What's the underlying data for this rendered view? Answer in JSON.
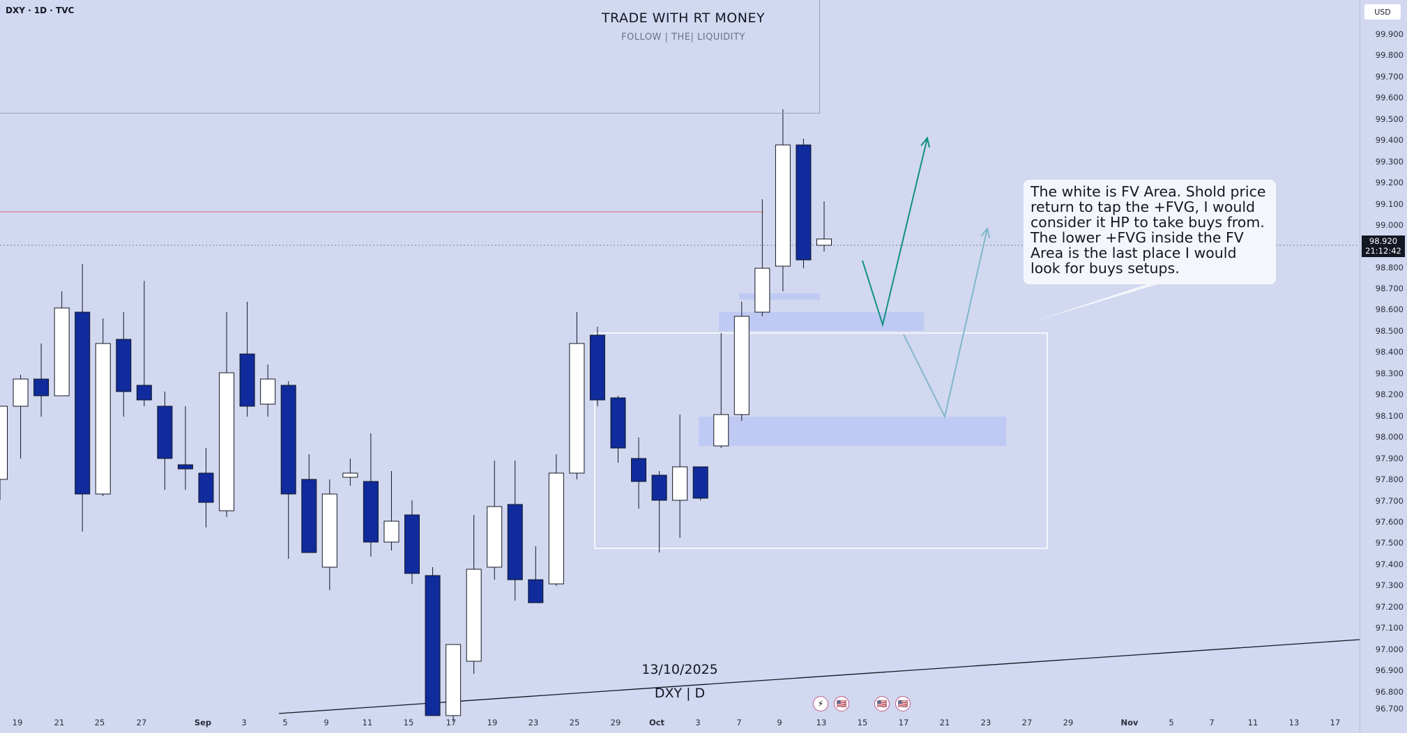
{
  "header": {
    "symbol": "DXY · 1D · TVC"
  },
  "banner": {
    "title": "TRADE WITH RT MONEY",
    "subtitle": "FOLLOW   |   THE|   LIQUIDITY"
  },
  "note": {
    "text": "The white is FV Area.  Shold price return to tap the +FVG, I would consider it HP to take buys from. The lower +FVG inside the FV Area is the last place I would look for buys setups."
  },
  "footer": {
    "date": "13/10/2025",
    "symbol": "DXY | D"
  },
  "price_axis": {
    "currency": "USD",
    "last_price": "98.920",
    "countdown": "21:12:42",
    "labels": [
      "99.900",
      "99.800",
      "99.700",
      "99.600",
      "99.500",
      "99.400",
      "99.300",
      "99.200",
      "99.100",
      "99.000",
      "98.800",
      "98.700",
      "98.600",
      "98.500",
      "98.400",
      "98.300",
      "98.200",
      "98.100",
      "98.000",
      "97.900",
      "97.800",
      "97.700",
      "97.600",
      "97.500",
      "97.400",
      "97.300",
      "97.200",
      "97.100",
      "97.000",
      "96.900",
      "96.800",
      "96.700"
    ]
  },
  "time_axis": {
    "labels": [
      "19",
      "21",
      "25",
      "27",
      "Sep",
      "3",
      "5",
      "9",
      "11",
      "15",
      "17",
      "19",
      "23",
      "25",
      "29",
      "Oct",
      "3",
      "7",
      "9",
      "13",
      "15",
      "17",
      "21",
      "23",
      "27",
      "29",
      "Nov",
      "5",
      "7",
      "11",
      "13",
      "17"
    ]
  },
  "events": [
    {
      "icon": "lightning-icon"
    },
    {
      "icon": "us-flag-icon"
    },
    {
      "icon": "us-flag-icon"
    },
    {
      "icon": "us-flag-icon"
    }
  ],
  "colors": {
    "bull_body": "#ffffff",
    "bear_body": "#0f2b9c",
    "wick": "#131722",
    "fvg": "#bcc8f4",
    "arrow_primary": "#119180",
    "arrow_secondary": "#7fb7c9",
    "red_line": "#e07070",
    "background": "#d1d8f0"
  },
  "chart_data": {
    "type": "candlestick",
    "symbol": "DXY",
    "timeframe": "1D",
    "ylim": [
      96.7,
      100.0
    ],
    "candles": [
      {
        "x": "14",
        "o": 97.8,
        "h": 98.15,
        "l": 97.7,
        "c": 98.15
      },
      {
        "x": "15",
        "o": 98.15,
        "h": 98.3,
        "l": 97.9,
        "c": 98.28
      },
      {
        "x": "18",
        "o": 98.28,
        "h": 98.45,
        "l": 98.1,
        "c": 98.2
      },
      {
        "x": "19",
        "o": 98.2,
        "h": 98.7,
        "l": 98.2,
        "c": 98.62
      },
      {
        "x": "20",
        "o": 98.6,
        "h": 98.83,
        "l": 97.55,
        "c": 97.73
      },
      {
        "x": "21",
        "o": 97.73,
        "h": 98.57,
        "l": 97.72,
        "c": 98.45
      },
      {
        "x": "22",
        "o": 98.47,
        "h": 98.6,
        "l": 98.1,
        "c": 98.22
      },
      {
        "x": "25",
        "o": 98.25,
        "h": 98.75,
        "l": 98.15,
        "c": 98.18
      },
      {
        "x": "26",
        "o": 98.15,
        "h": 98.22,
        "l": 97.75,
        "c": 97.9
      },
      {
        "x": "27",
        "o": 97.87,
        "h": 98.15,
        "l": 97.75,
        "c": 97.85
      },
      {
        "x": "28",
        "o": 97.83,
        "h": 97.95,
        "l": 97.57,
        "c": 97.69
      },
      {
        "x": "29",
        "o": 97.65,
        "h": 98.6,
        "l": 97.62,
        "c": 98.31
      },
      {
        "x": "Sep 1",
        "o": 98.4,
        "h": 98.65,
        "l": 98.1,
        "c": 98.15
      },
      {
        "x": "2",
        "o": 98.16,
        "h": 98.35,
        "l": 98.1,
        "c": 98.28
      },
      {
        "x": "3",
        "o": 98.25,
        "h": 98.27,
        "l": 97.42,
        "c": 97.73
      },
      {
        "x": "4",
        "o": 97.8,
        "h": 97.92,
        "l": 97.45,
        "c": 97.45
      },
      {
        "x": "5",
        "o": 97.38,
        "h": 97.8,
        "l": 97.27,
        "c": 97.73
      },
      {
        "x": "8",
        "o": 97.81,
        "h": 97.9,
        "l": 97.77,
        "c": 97.83
      },
      {
        "x": "9",
        "o": 97.79,
        "h": 98.02,
        "l": 97.43,
        "c": 97.5
      },
      {
        "x": "10",
        "o": 97.5,
        "h": 97.84,
        "l": 97.46,
        "c": 97.6
      },
      {
        "x": "11",
        "o": 97.63,
        "h": 97.7,
        "l": 97.3,
        "c": 97.35
      },
      {
        "x": "12",
        "o": 97.34,
        "h": 97.38,
        "l": 96.67,
        "c": 96.67
      },
      {
        "x": "15",
        "o": 96.67,
        "h": 97.01,
        "l": 96.64,
        "c": 97.01
      },
      {
        "x": "16",
        "o": 96.93,
        "h": 97.63,
        "l": 96.87,
        "c": 97.37
      },
      {
        "x": "17",
        "o": 97.38,
        "h": 97.89,
        "l": 97.32,
        "c": 97.67
      },
      {
        "x": "18",
        "o": 97.68,
        "h": 97.89,
        "l": 97.22,
        "c": 97.32
      },
      {
        "x": "19",
        "o": 97.32,
        "h": 97.48,
        "l": 97.21,
        "c": 97.21
      },
      {
        "x": "22",
        "o": 97.3,
        "h": 97.92,
        "l": 97.29,
        "c": 97.83
      },
      {
        "x": "23",
        "o": 97.83,
        "h": 98.6,
        "l": 97.8,
        "c": 98.45
      },
      {
        "x": "24",
        "o": 98.49,
        "h": 98.53,
        "l": 98.15,
        "c": 98.18
      },
      {
        "x": "25",
        "o": 98.19,
        "h": 98.2,
        "l": 97.88,
        "c": 97.95
      },
      {
        "x": "26",
        "o": 97.9,
        "h": 98.0,
        "l": 97.66,
        "c": 97.79
      },
      {
        "x": "29",
        "o": 97.82,
        "h": 97.84,
        "l": 97.45,
        "c": 97.7
      },
      {
        "x": "30",
        "o": 97.7,
        "h": 98.11,
        "l": 97.52,
        "c": 97.86
      },
      {
        "x": "Oct 1",
        "o": 97.86,
        "h": 97.86,
        "l": 97.7,
        "c": 97.71
      },
      {
        "x": "2",
        "o": 97.96,
        "h": 98.5,
        "l": 97.95,
        "c": 98.11
      },
      {
        "x": "3",
        "o": 98.11,
        "h": 98.65,
        "l": 98.08,
        "c": 98.58
      },
      {
        "x": "6",
        "o": 98.6,
        "h": 99.14,
        "l": 98.58,
        "c": 98.81
      },
      {
        "x": "7",
        "o": 98.82,
        "h": 99.57,
        "l": 98.7,
        "c": 99.4
      },
      {
        "x": "8",
        "o": 99.4,
        "h": 99.43,
        "l": 98.81,
        "c": 98.85
      },
      {
        "x": "9",
        "o": 98.92,
        "h": 99.13,
        "l": 98.89,
        "c": 98.95
      }
    ],
    "zones": [
      {
        "name": "+FVG upper",
        "from": 98.51,
        "to": 98.6
      },
      {
        "name": "+FVG small",
        "from": 98.66,
        "to": 98.69
      },
      {
        "name": "+FVG lower",
        "from": 97.96,
        "to": 98.1
      },
      {
        "name": "FV Area",
        "from": 97.47,
        "to": 98.5
      }
    ],
    "horizontal_lines": [
      {
        "price": 99.08,
        "color": "red"
      },
      {
        "price": 98.92,
        "style": "dotted"
      }
    ]
  }
}
